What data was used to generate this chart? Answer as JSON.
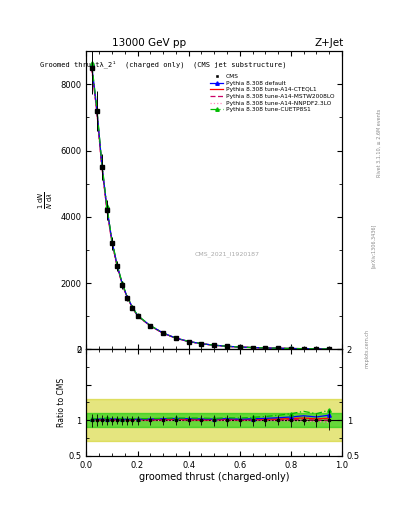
{
  "title_top": "13000 GeV pp",
  "title_right": "Z+Jet",
  "plot_title": "Groomed thrustλ_2¹  (charged only)  (CMS jet substructure)",
  "xlabel": "groomed thrust (charged-only)",
  "ylabel_main": "$\\mathrm{1/N\\,dN/d\\lambda}$",
  "ylabel_ratio": "Ratio to CMS",
  "watermark": "CMS_2021_I1920187",
  "rivet_text": "Rivet 3.1.10, ≥ 2.6M events",
  "arxiv_text": "[arXiv:1306.3436]",
  "mcplots_text": "mcplots.cern.ch",
  "xlim": [
    0,
    1
  ],
  "ylim_main": [
    0,
    9000
  ],
  "ylim_ratio": [
    0.5,
    2.0
  ],
  "ratio_line": 1.0,
  "green_band_color": "#00cc00",
  "yellow_band_color": "#cccc00",
  "green_band_alpha": 0.55,
  "yellow_band_alpha": 0.5,
  "cms_color": "black",
  "default_color": "blue",
  "cteql1_color": "red",
  "mstw_color": "#cc0066",
  "nnpdf_color": "#ff88bb",
  "cuetp_color": "#00bb00",
  "series_x": [
    0.02,
    0.04,
    0.06,
    0.08,
    0.1,
    0.12,
    0.14,
    0.16,
    0.18,
    0.2,
    0.25,
    0.3,
    0.35,
    0.4,
    0.45,
    0.5,
    0.55,
    0.6,
    0.65,
    0.7,
    0.75,
    0.8,
    0.85,
    0.9,
    0.95
  ],
  "cms_y": [
    8500,
    7200,
    5500,
    4200,
    3200,
    2500,
    1950,
    1550,
    1250,
    1000,
    700,
    480,
    330,
    230,
    165,
    120,
    88,
    65,
    50,
    38,
    29,
    22,
    16,
    11,
    7
  ],
  "cms_yerr_lo": [
    800,
    600,
    400,
    300,
    200,
    150,
    120,
    100,
    80,
    65,
    45,
    30,
    22,
    15,
    12,
    9,
    7,
    5,
    4,
    3,
    2,
    2,
    1,
    1,
    1
  ],
  "cms_yerr_hi": [
    800,
    600,
    400,
    300,
    200,
    150,
    120,
    100,
    80,
    65,
    45,
    30,
    22,
    15,
    12,
    9,
    7,
    5,
    4,
    3,
    2,
    2,
    1,
    1,
    1
  ],
  "default_y": [
    8600,
    7300,
    5600,
    4280,
    3260,
    2540,
    1980,
    1570,
    1270,
    1015,
    712,
    490,
    338,
    235,
    168,
    122,
    90,
    66,
    51,
    39,
    30,
    23,
    17,
    11.5,
    7.5
  ],
  "cteql1_y": [
    8550,
    7250,
    5550,
    4250,
    3230,
    2520,
    1965,
    1560,
    1260,
    1008,
    706,
    485,
    334,
    232,
    166,
    121,
    89,
    65.5,
    50.5,
    38.5,
    29.5,
    22.5,
    16.5,
    11.2,
    7.2
  ],
  "mstw_y": [
    8520,
    7220,
    5520,
    4220,
    3210,
    2510,
    1955,
    1555,
    1255,
    1005,
    703,
    482,
    332,
    231,
    165.5,
    120.5,
    88.5,
    65.2,
    50.2,
    38.2,
    29.2,
    22.2,
    16.2,
    11.0,
    7.0
  ],
  "nnpdf_y": [
    8480,
    7180,
    5480,
    4180,
    3190,
    2490,
    1945,
    1545,
    1245,
    995,
    697,
    478,
    328,
    229,
    164.5,
    119.5,
    87.5,
    64.8,
    49.8,
    37.8,
    28.8,
    21.8,
    15.8,
    10.8,
    6.8
  ],
  "cuetp_y": [
    8650,
    7350,
    5650,
    4320,
    3280,
    2560,
    1995,
    1580,
    1280,
    1022,
    716,
    493,
    340,
    237,
    170,
    123,
    91,
    67,
    52,
    40,
    31,
    24,
    18,
    12,
    8
  ],
  "background_color": "white",
  "legend_entries": [
    "CMS",
    "Pythia 8.308 default",
    "Pythia 8.308 tune-A14-CTEQL1",
    "Pythia 8.308 tune-A14-MSTW2008LO",
    "Pythia 8.308 tune-A14-NNPDF2.3LO",
    "Pythia 8.308 tune-CUETP8S1"
  ],
  "yticks_main": [
    0,
    2000,
    4000,
    6000,
    8000
  ],
  "ytick_labels_main": [
    "0",
    "2000",
    "4000",
    "6000",
    "8000"
  ]
}
